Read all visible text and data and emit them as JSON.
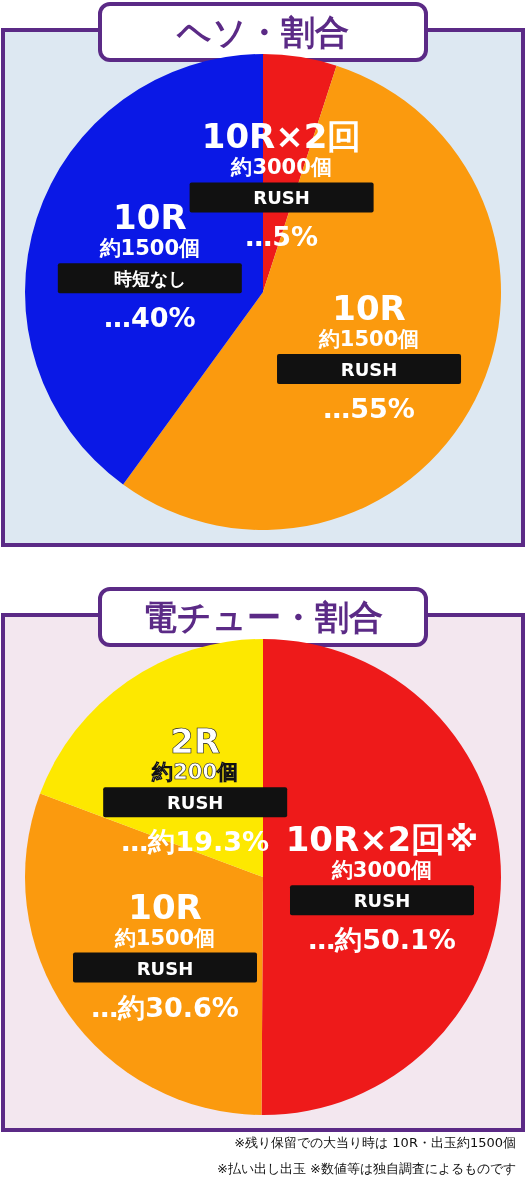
{
  "chart_data": [
    {
      "type": "pie",
      "title": "ヘソ・割合",
      "categories": [
        "10R×2回",
        "10R",
        "10R"
      ],
      "values": [
        5,
        55,
        40
      ],
      "colors": [
        "#ee1a1a",
        "#fb9a0e",
        "#0a18e6"
      ],
      "value_labels": [
        "…5%",
        "…55%",
        "…40%"
      ],
      "annotations": [
        "約3000個",
        "RUSH",
        "約1500個",
        "RUSH",
        "約1500個",
        "時短なし"
      ]
    },
    {
      "type": "pie",
      "title": "電チュー・割合",
      "categories": [
        "10R×2回※",
        "10R",
        "2R"
      ],
      "values": [
        50.1,
        30.6,
        19.3
      ],
      "colors": [
        "#ee1a1a",
        "#fb9a0e",
        "#fde800"
      ],
      "value_labels": [
        "…約50.1%",
        "…約30.6%",
        "…約19.3%"
      ],
      "annotations": [
        "約3000個",
        "RUSH",
        "約1500個",
        "RUSH",
        "約200個",
        "RUSH",
        "※残り保留での大当り時は 10R・出玉約1500個",
        "※払い出し出玉 ※数値等は独自調査によるものです"
      ]
    }
  ]
}
